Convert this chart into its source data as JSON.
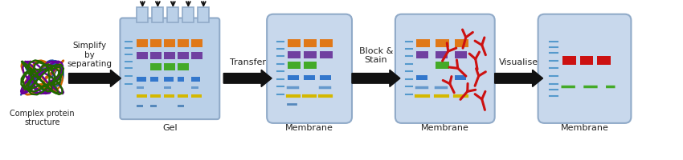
{
  "bg_color": "#ffffff",
  "gel_bg": "#bad0e8",
  "mem_bg": "#c8d8ec",
  "box_edge": "#90aac8",
  "colors": {
    "orange": "#e07818",
    "purple": "#7040a0",
    "green": "#44aa28",
    "blue": "#3377cc",
    "yellow": "#d4b800",
    "cyan_marker": "#5599cc",
    "red": "#cc1111",
    "protein_blue": "#2255aa",
    "protein_orange": "#cc6600",
    "protein_purple": "#660099",
    "protein_green": "#226600"
  },
  "arrow_color": "#111111",
  "text_color": "#222222",
  "labels": {
    "step0": "Complex protein\nstructure",
    "step1_title": "Simplify\nby\nseparating",
    "step1_label": "Gel",
    "step2_arrow": "Transfer",
    "step2_label": "Membrane",
    "step3_arrow": "Block &\nStain",
    "step3_label": "Membrane",
    "step4_arrow": "Visualise",
    "step4_label": "Membrane"
  },
  "figsize": [
    8.5,
    2.0
  ],
  "dpi": 100
}
